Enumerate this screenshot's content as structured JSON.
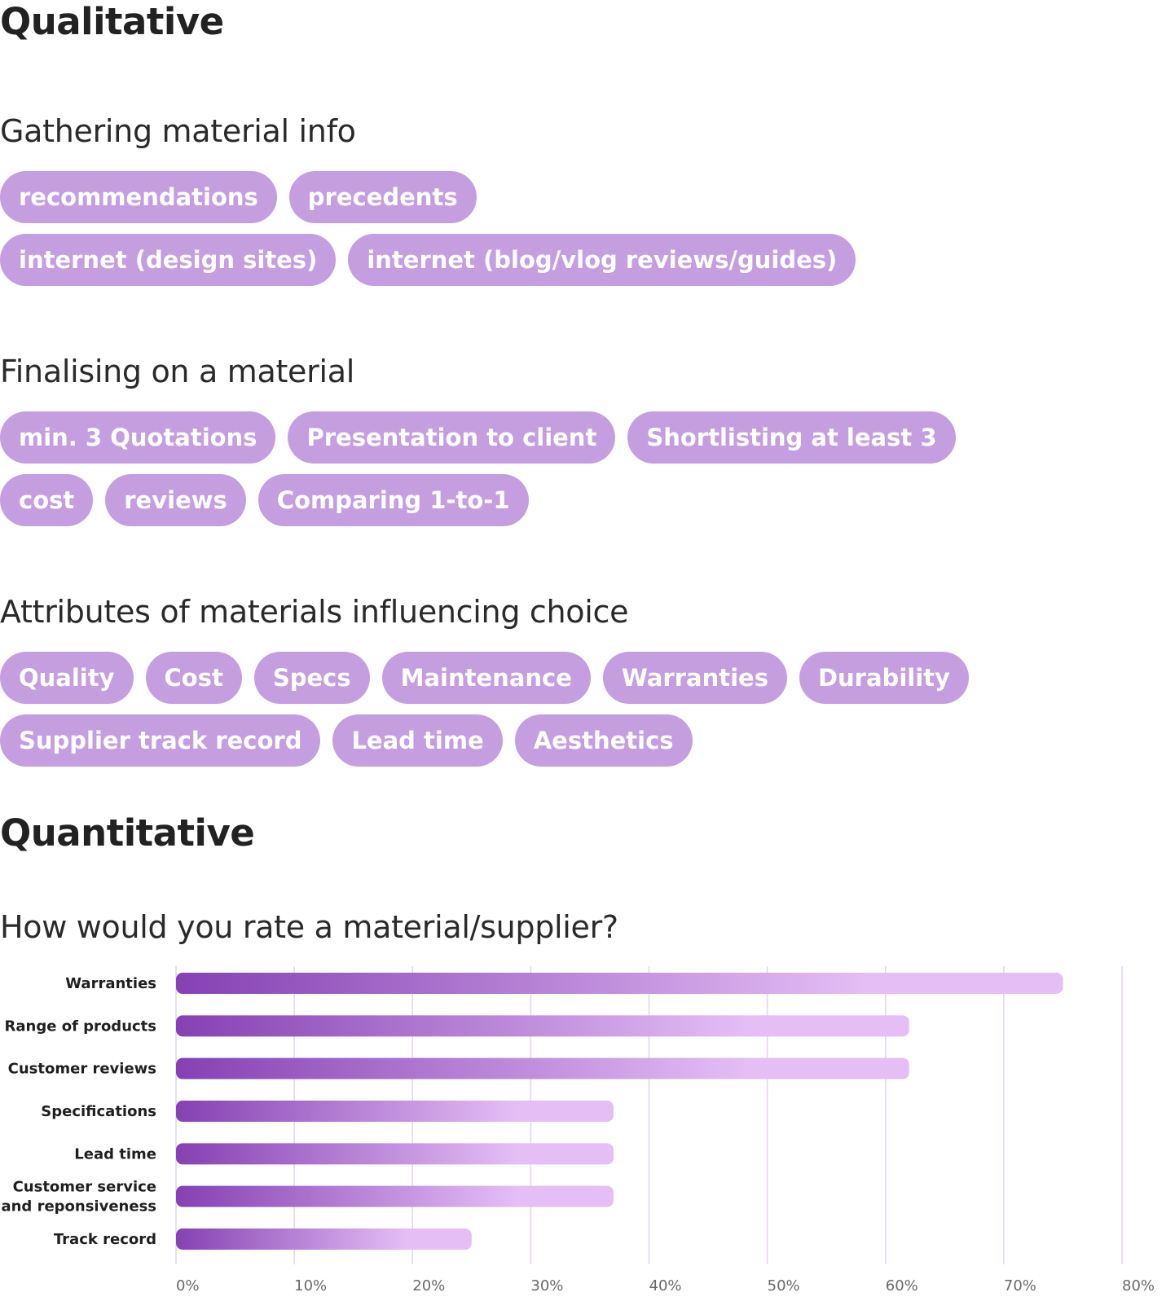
{
  "sections": {
    "qualitative": "Qualitative",
    "quantitative": "Quantitative"
  },
  "colors": {
    "pill": "#c59ee0",
    "pill_text": "#ffffff",
    "bar_start": "#8541b3",
    "bar_end": "#e4bef5",
    "grid": "#e6d3f0"
  },
  "gathering": {
    "title": "Gathering material info",
    "rows": [
      [
        "recommendations",
        "precedents"
      ],
      [
        "internet (design sites)",
        "internet (blog/vlog reviews/guides)"
      ]
    ]
  },
  "finalising": {
    "title": "Finalising on a material",
    "rows": [
      [
        "min. 3 Quotations",
        "Presentation to client",
        "Shortlisting at least 3"
      ],
      [
        "cost",
        "reviews",
        "Comparing 1-to-1"
      ]
    ]
  },
  "attributes": {
    "title": "Attributes of materials influencing choice",
    "rows": [
      [
        "Quality",
        "Cost",
        "Specs",
        "Maintenance",
        "Warranties",
        "Durability"
      ],
      [
        "Supplier track record",
        "Lead time",
        "Aesthetics"
      ]
    ]
  },
  "chart_data": {
    "type": "bar",
    "orientation": "horizontal",
    "title": "How would you rate a material/supplier?",
    "categories": [
      "Warranties",
      "Range of products",
      "Customer reviews",
      "Specifications",
      "Lead time",
      "Customer service and reponsiveness",
      "Track record"
    ],
    "category_lines": [
      [
        "Warranties"
      ],
      [
        "Range of products"
      ],
      [
        "Customer reviews"
      ],
      [
        "Specifications"
      ],
      [
        "Lead time"
      ],
      [
        "Customer service",
        "and reponsiveness"
      ],
      [
        "Track record"
      ]
    ],
    "values": [
      75,
      62,
      62,
      37,
      37,
      37,
      25
    ],
    "xlim": [
      0,
      80
    ],
    "xticks": [
      0,
      10,
      20,
      30,
      40,
      50,
      60,
      70,
      80
    ],
    "xtick_labels": [
      "0%",
      "10%",
      "20%",
      "30%",
      "40%",
      "50%",
      "60%",
      "70%",
      "80%"
    ],
    "grid": true,
    "xlabel": "",
    "ylabel": ""
  }
}
